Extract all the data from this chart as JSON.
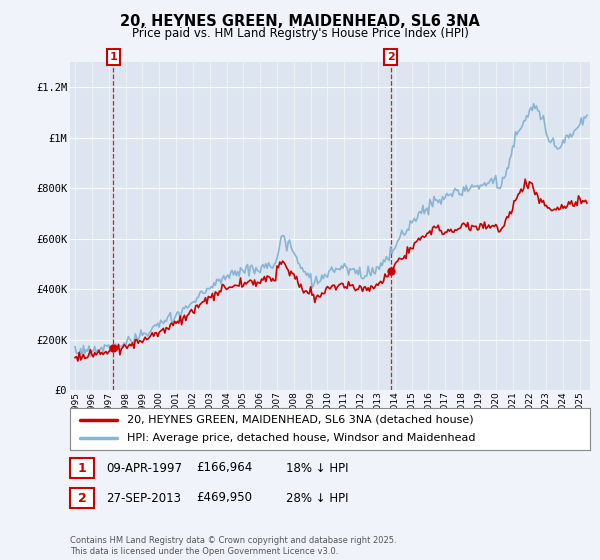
{
  "title": "20, HEYNES GREEN, MAIDENHEAD, SL6 3NA",
  "subtitle": "Price paid vs. HM Land Registry's House Price Index (HPI)",
  "legend_line1": "20, HEYNES GREEN, MAIDENHEAD, SL6 3NA (detached house)",
  "legend_line2": "HPI: Average price, detached house, Windsor and Maidenhead",
  "annotation1_label": "1",
  "annotation1_date": "09-APR-1997",
  "annotation1_price": "£166,964",
  "annotation1_hpi": "18% ↓ HPI",
  "annotation2_label": "2",
  "annotation2_date": "27-SEP-2013",
  "annotation2_price": "£469,950",
  "annotation2_hpi": "28% ↓ HPI",
  "footer": "Contains HM Land Registry data © Crown copyright and database right 2025.\nThis data is licensed under the Open Government Licence v3.0.",
  "hpi_color": "#8ab4d4",
  "price_color": "#cc0000",
  "marker_color": "#cc0000",
  "annotation_box_color": "#cc0000",
  "vline_color": "#cc0000",
  "background_color": "#f0f4fa",
  "plot_bg_color": "#dde6f0",
  "ylim": [
    0,
    1300000
  ],
  "yticks": [
    0,
    200000,
    400000,
    600000,
    800000,
    1000000,
    1200000
  ],
  "ytick_labels": [
    "£0",
    "£200K",
    "£400K",
    "£600K",
    "£800K",
    "£1M",
    "£1.2M"
  ],
  "sold_year1": 1997.28,
  "sold_price1": 166964,
  "sold_year2": 2013.75,
  "sold_price2": 469950
}
